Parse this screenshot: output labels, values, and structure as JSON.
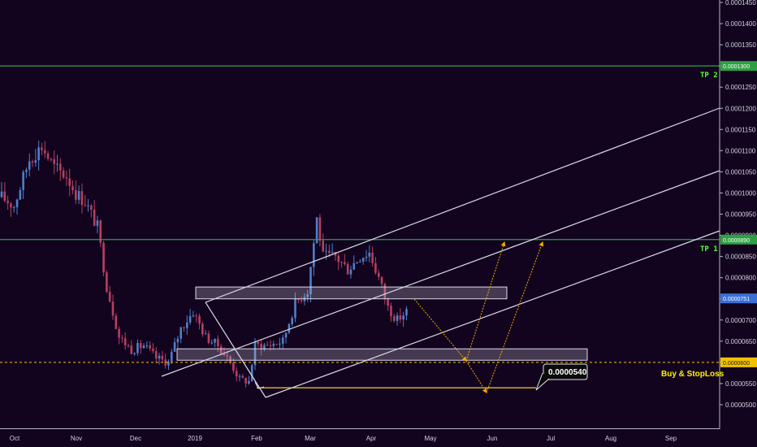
{
  "chart_data": {
    "type": "candlestick",
    "x_tick_labels": [
      "Oct",
      "Nov",
      "Dec",
      "2019",
      "Feb",
      "Mar",
      "Apr",
      "May",
      "Jun",
      "Jul",
      "Aug",
      "Sep"
    ],
    "y_tick_labels": [
      "0.0001450",
      "0.0001400",
      "0.0001350",
      "0.0001300",
      "0.0001250",
      "0.0001200",
      "0.0001150",
      "0.0001100",
      "0.0001050",
      "0.0001000",
      "0.0000950",
      "0.0000900",
      "0.0000850",
      "0.0000800",
      "0.0000750",
      "0.0000700",
      "0.0000650",
      "0.0000600",
      "0.0000550",
      "0.0000500"
    ],
    "ylim": [
      4.75e-05,
      0.000146
    ],
    "price_tags": [
      {
        "value": 0.00013,
        "label": "0.0001300",
        "color": "#2ea043"
      },
      {
        "value": 8.9e-05,
        "label": "0.0000890",
        "color": "#2ea043"
      },
      {
        "value": 7.51e-05,
        "label": "0.0000751",
        "color": "#3a6fd8"
      },
      {
        "value": 6e-05,
        "label": "0.0000600",
        "color": "#f2c200"
      }
    ],
    "horizontal_levels": [
      {
        "value": 0.00013,
        "text": "TP 2",
        "color": "#2ea043",
        "style": "solid"
      },
      {
        "value": 8.9e-05,
        "text": "TP 1",
        "color": "#2ea043",
        "style": "solid"
      },
      {
        "value": 6e-05,
        "text": "Buy & StopLoss",
        "color": "#f2c200",
        "style": "dashed"
      }
    ],
    "callout": {
      "text": "0.0000540",
      "value": 5.4e-05
    },
    "candles": {
      "up_color": "#4f7fc8",
      "down_color": "#b5405f",
      "count": 148,
      "anchors": [
        [
          0,
          9.9e-05
        ],
        [
          4,
          9.7e-05
        ],
        [
          9,
          0.000108
        ],
        [
          13,
          0.000111
        ],
        [
          17,
          0.000106
        ],
        [
          21,
          0.000104
        ],
        [
          24,
          0.0001
        ],
        [
          27,
          9.8e-05
        ],
        [
          31,
          9.2e-05
        ],
        [
          34,
          7.8e-05
        ],
        [
          38,
          6.6e-05
        ],
        [
          42,
          6.3e-05
        ],
        [
          46,
          6.4e-05
        ],
        [
          50,
          6.1e-05
        ],
        [
          54,
          6e-05
        ],
        [
          58,
          6.8e-05
        ],
        [
          62,
          7.2e-05
        ],
        [
          66,
          6.6e-05
        ],
        [
          70,
          6.4e-05
        ],
        [
          74,
          6e-05
        ],
        [
          77,
          5.6e-05
        ],
        [
          80,
          5.55e-05
        ],
        [
          82,
          6.4e-05
        ],
        [
          86,
          6.4e-05
        ],
        [
          91,
          6.5e-05
        ],
        [
          95,
          7.4e-05
        ],
        [
          99,
          7.7e-05
        ],
        [
          102,
          9.4e-05
        ],
        [
          104,
          8.5e-05
        ],
        [
          108,
          8.5e-05
        ],
        [
          112,
          8.2e-05
        ],
        [
          116,
          8.5e-05
        ],
        [
          119,
          8.6e-05
        ],
        [
          122,
          8e-05
        ],
        [
          125,
          7.3e-05
        ],
        [
          128,
          7e-05
        ],
        [
          131,
          7.2e-05
        ]
      ]
    }
  },
  "drawings": {
    "zones": [
      {
        "name": "resistance-zone",
        "from": 7.5e-05,
        "to": 7.78e-05
      },
      {
        "name": "support-zone",
        "from": 6.05e-05,
        "to": 6.32e-05
      }
    ],
    "channel_color": "#d9d9e6",
    "projection_color": "#f2a900"
  }
}
